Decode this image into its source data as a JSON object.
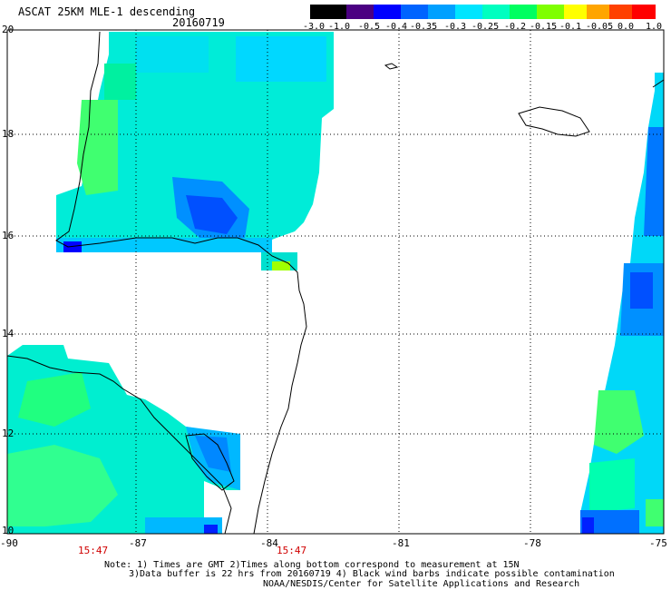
{
  "header": {
    "title": "ASCAT 25KM MLE-1 descending",
    "date": "20160719"
  },
  "colorbar": {
    "labels": [
      "-3.0",
      "-1.0",
      "-0.5",
      "-0.4",
      "-0.35",
      "-0.3",
      "-0.25",
      "-0.2",
      "-0.15",
      "-0.1",
      "-0.05",
      "0.0",
      "1.0"
    ]
  },
  "axes": {
    "lat_labels": [
      "20",
      "18",
      "16",
      "14",
      "12",
      "10"
    ],
    "lon_labels": [
      "-90",
      "-87",
      "-84",
      "-81",
      "-78",
      "-75"
    ]
  },
  "times": [
    "15:47",
    "15:47"
  ],
  "notes": [
    "Note: 1) Times are GMT 2)Times along bottom correspond to measurement at 15N",
    "3)Data buffer is 22 hrs from 20160719 4) Black wind barbs indicate possible contamination",
    "NOAA/NESDIS/Center for Satellite Applications and Research"
  ],
  "map_data": {
    "lon_range": [
      -90,
      -75
    ],
    "lat_range": [
      10,
      20
    ],
    "palette": [
      "#000000",
      "#4b0082",
      "#0000ff",
      "#0064ff",
      "#00a0ff",
      "#00e5ff",
      "#00ffc0",
      "#00ff60",
      "#7fff00",
      "#ffff00",
      "#ffa500",
      "#ff4000",
      "#ff0000"
    ]
  }
}
